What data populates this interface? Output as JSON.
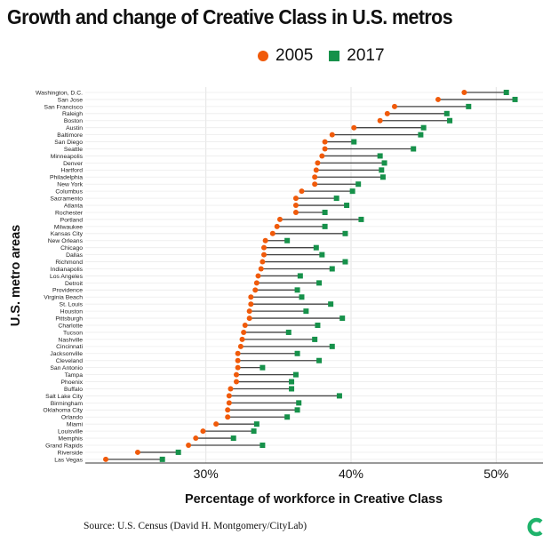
{
  "chart_data": {
    "type": "dumbbell",
    "title": "Growth and change of Creative Class in U.S. metros",
    "xlabel": "Percentage of workforce in Creative Class",
    "ylabel": "U.S. metro areas",
    "xlim": [
      21.7,
      53.2
    ],
    "xticks": [
      30,
      40,
      50
    ],
    "xtick_labels": [
      "30%",
      "40%",
      "50%"
    ],
    "grid": true,
    "legend_position": "top",
    "series": [
      {
        "name": "2005",
        "color": "#f05a0a",
        "marker": "circle"
      },
      {
        "name": "2017",
        "color": "#16914a",
        "marker": "square"
      }
    ],
    "categories": [
      "Washington, D.C.",
      "San Jose",
      "San Francisco",
      "Raleigh",
      "Boston",
      "Austin",
      "Baltimore",
      "San Diego",
      "Seattle",
      "Minneapolis",
      "Denver",
      "Hartford",
      "Philadelphia",
      "New York",
      "Columbus",
      "Sacramento",
      "Atlanta",
      "Rochester",
      "Portland",
      "Milwaukee",
      "Kansas City",
      "New Orleans",
      "Chicago",
      "Dallas",
      "Richmond",
      "Indianapolis",
      "Los Angeles",
      "Detroit",
      "Providence",
      "Virginia Beach",
      "St. Louis",
      "Houston",
      "Pittsburgh",
      "Charlotte",
      "Tucson",
      "Nashville",
      "Cincinnati",
      "Jacksonville",
      "Cleveland",
      "San Antonio",
      "Tampa",
      "Phoenix",
      "Buffalo",
      "Salt Lake City",
      "Birmingham",
      "Oklahoma City",
      "Orlando",
      "Miami",
      "Louisville",
      "Memphis",
      "Grand Rapids",
      "Riverside",
      "Las Vegas"
    ],
    "values_2005": [
      47.8,
      46.0,
      43.0,
      42.5,
      42.0,
      40.2,
      38.7,
      38.2,
      38.2,
      38.0,
      37.7,
      37.6,
      37.5,
      37.5,
      36.6,
      36.2,
      36.2,
      36.2,
      35.1,
      34.9,
      34.6,
      34.1,
      34.0,
      34.0,
      33.9,
      33.8,
      33.6,
      33.5,
      33.4,
      33.1,
      33.1,
      33.0,
      33.0,
      32.7,
      32.6,
      32.5,
      32.4,
      32.2,
      32.2,
      32.2,
      32.1,
      32.1,
      31.7,
      31.6,
      31.6,
      31.5,
      31.5,
      30.7,
      29.8,
      29.3,
      28.8,
      25.3,
      23.1
    ],
    "values_2017": [
      50.7,
      51.3,
      48.1,
      46.6,
      46.8,
      45.0,
      44.8,
      40.2,
      44.3,
      42.0,
      42.3,
      42.1,
      42.2,
      40.5,
      40.1,
      39.0,
      39.7,
      38.2,
      40.7,
      38.2,
      39.6,
      35.6,
      37.6,
      38.0,
      39.6,
      38.7,
      36.5,
      37.8,
      36.3,
      36.6,
      38.6,
      36.9,
      39.4,
      37.7,
      35.7,
      37.5,
      38.7,
      36.3,
      37.8,
      33.9,
      36.2,
      35.9,
      35.9,
      39.2,
      36.4,
      36.3,
      35.6,
      33.5,
      33.3,
      31.9,
      33.9,
      28.1,
      27.0
    ]
  },
  "source": "Source: U.S. Census (David H. Montgomery/CityLab)",
  "logo": "CityLab"
}
